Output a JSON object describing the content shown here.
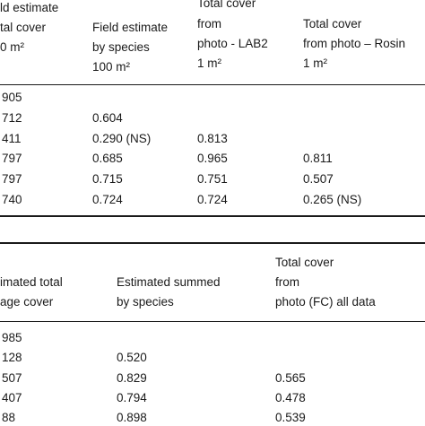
{
  "table1": {
    "headers": {
      "col1": [
        "ld estimate",
        "tal cover",
        "0 m²"
      ],
      "col2": [
        "Field estimate",
        "by species",
        "100 m²"
      ],
      "col3": [
        "Total cover",
        "from",
        "photo - LAB2",
        "1 m²"
      ],
      "col4": [
        "Total cover",
        "from photo – Rosin",
        "1 m²"
      ]
    },
    "rows": [
      [
        "905",
        "",
        "",
        ""
      ],
      [
        "712",
        "0.604",
        "",
        ""
      ],
      [
        "411",
        "0.290 (NS)",
        "0.813",
        ""
      ],
      [
        "797",
        "0.685",
        "0.965",
        "0.811"
      ],
      [
        "797",
        "0.715",
        "0.751",
        "0.507"
      ],
      [
        "740",
        "0.724",
        "0.724",
        "0.265 (NS)"
      ]
    ]
  },
  "table2": {
    "headers": {
      "col1": [
        "imated total",
        "age cover"
      ],
      "col2": [
        "Estimated summed",
        "by species"
      ],
      "col3": [
        "Total cover",
        "from",
        "photo (FC) all data"
      ]
    },
    "rows": [
      [
        "985",
        "",
        ""
      ],
      [
        "128",
        "0.520",
        ""
      ],
      [
        "507",
        "0.829",
        "0.565"
      ],
      [
        "407",
        "0.794",
        "0.478"
      ],
      [
        "88",
        "0.898",
        "0.539"
      ]
    ]
  }
}
